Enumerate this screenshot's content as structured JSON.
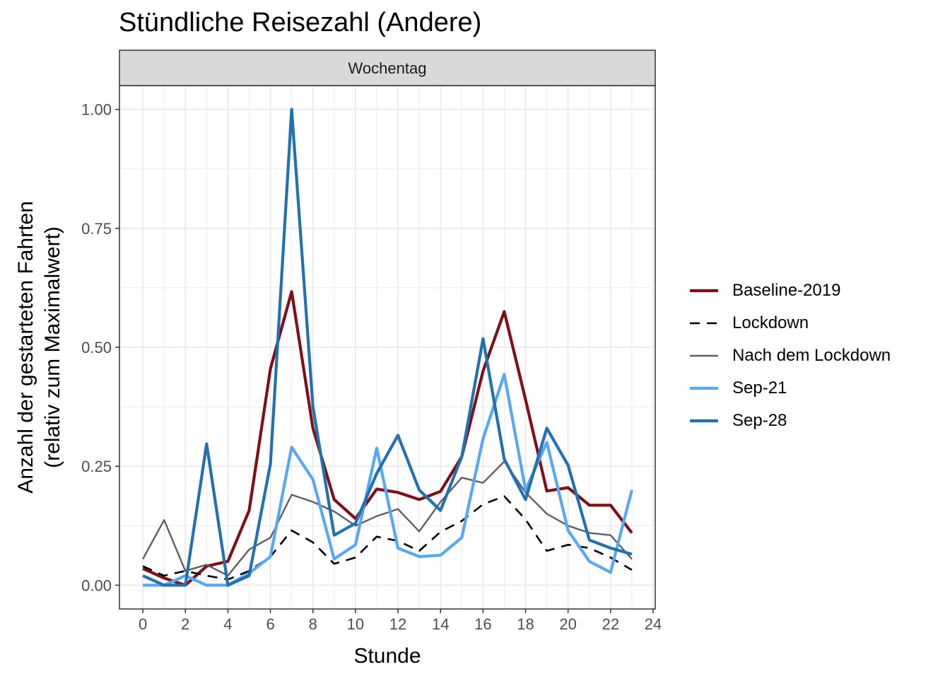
{
  "title": "Stündliche Reisezahl (Andere)",
  "chart_data": {
    "type": "line",
    "title": "Stündliche Reisezahl (Andere)",
    "facet": "Wochentag",
    "xlabel": "Stunde",
    "ylabel_line1": "Anzahl der gestarteten Fahrten",
    "ylabel_line2": "(relativ zum Maximalwert)",
    "xlim": [
      -1.1,
      24.1
    ],
    "ylim": [
      -0.05,
      1.05
    ],
    "xticks": [
      0,
      2,
      4,
      6,
      8,
      10,
      12,
      14,
      16,
      18,
      20,
      22,
      24
    ],
    "yticks": [
      0,
      0.25,
      0.5,
      0.75,
      1
    ],
    "ytick_labels": [
      "0.00",
      "0.25",
      "0.50",
      "0.75",
      "1.00"
    ],
    "grid": true,
    "legend_position": "right",
    "x": [
      0,
      1,
      2,
      3,
      4,
      5,
      6,
      7,
      8,
      9,
      10,
      11,
      12,
      13,
      14,
      15,
      16,
      17,
      18,
      19,
      20,
      21,
      22,
      23
    ],
    "series": [
      {
        "name": "Baseline-2019",
        "color": "#7f0f1a",
        "style": "solid-thick",
        "values": [
          0.035,
          0.015,
          0.0,
          0.04,
          0.05,
          0.157,
          0.455,
          0.617,
          0.33,
          0.18,
          0.14,
          0.202,
          0.195,
          0.18,
          0.197,
          0.27,
          0.45,
          0.575,
          0.39,
          0.198,
          0.205,
          0.168,
          0.168,
          0.11
        ]
      },
      {
        "name": "Lockdown",
        "color": "#000000",
        "style": "dashed",
        "values": [
          0.04,
          0.02,
          0.03,
          0.02,
          0.012,
          0.03,
          0.06,
          0.115,
          0.09,
          0.045,
          0.058,
          0.102,
          0.093,
          0.072,
          0.112,
          0.135,
          0.17,
          0.187,
          0.138,
          0.072,
          0.085,
          0.078,
          0.058,
          0.032
        ]
      },
      {
        "name": "Nach dem Lockdown",
        "color": "#5f5f5f",
        "style": "solid-thin",
        "values": [
          0.055,
          0.137,
          0.03,
          0.043,
          0.02,
          0.075,
          0.1,
          0.19,
          0.175,
          0.155,
          0.125,
          0.145,
          0.16,
          0.113,
          0.175,
          0.226,
          0.215,
          0.26,
          0.195,
          0.15,
          0.125,
          0.11,
          0.105,
          0.055
        ]
      },
      {
        "name": "Sep-21",
        "color": "#56a8f5",
        "style": "solid-thick",
        "values": [
          0.0,
          0.0,
          0.02,
          0.0,
          0.0,
          0.025,
          0.06,
          0.29,
          0.222,
          0.055,
          0.085,
          0.288,
          0.078,
          0.06,
          0.063,
          0.1,
          0.308,
          0.443,
          0.2,
          0.3,
          0.115,
          0.05,
          0.027,
          0.2
        ]
      },
      {
        "name": "Sep-28",
        "color": "#2271b0",
        "style": "solid-thick",
        "values": [
          0.02,
          0.0,
          0.0,
          0.297,
          0.0,
          0.02,
          0.255,
          1.0,
          0.375,
          0.105,
          0.13,
          0.235,
          0.315,
          0.2,
          0.157,
          0.27,
          0.518,
          0.265,
          0.18,
          0.33,
          0.252,
          0.095,
          0.078,
          0.065
        ]
      }
    ]
  }
}
